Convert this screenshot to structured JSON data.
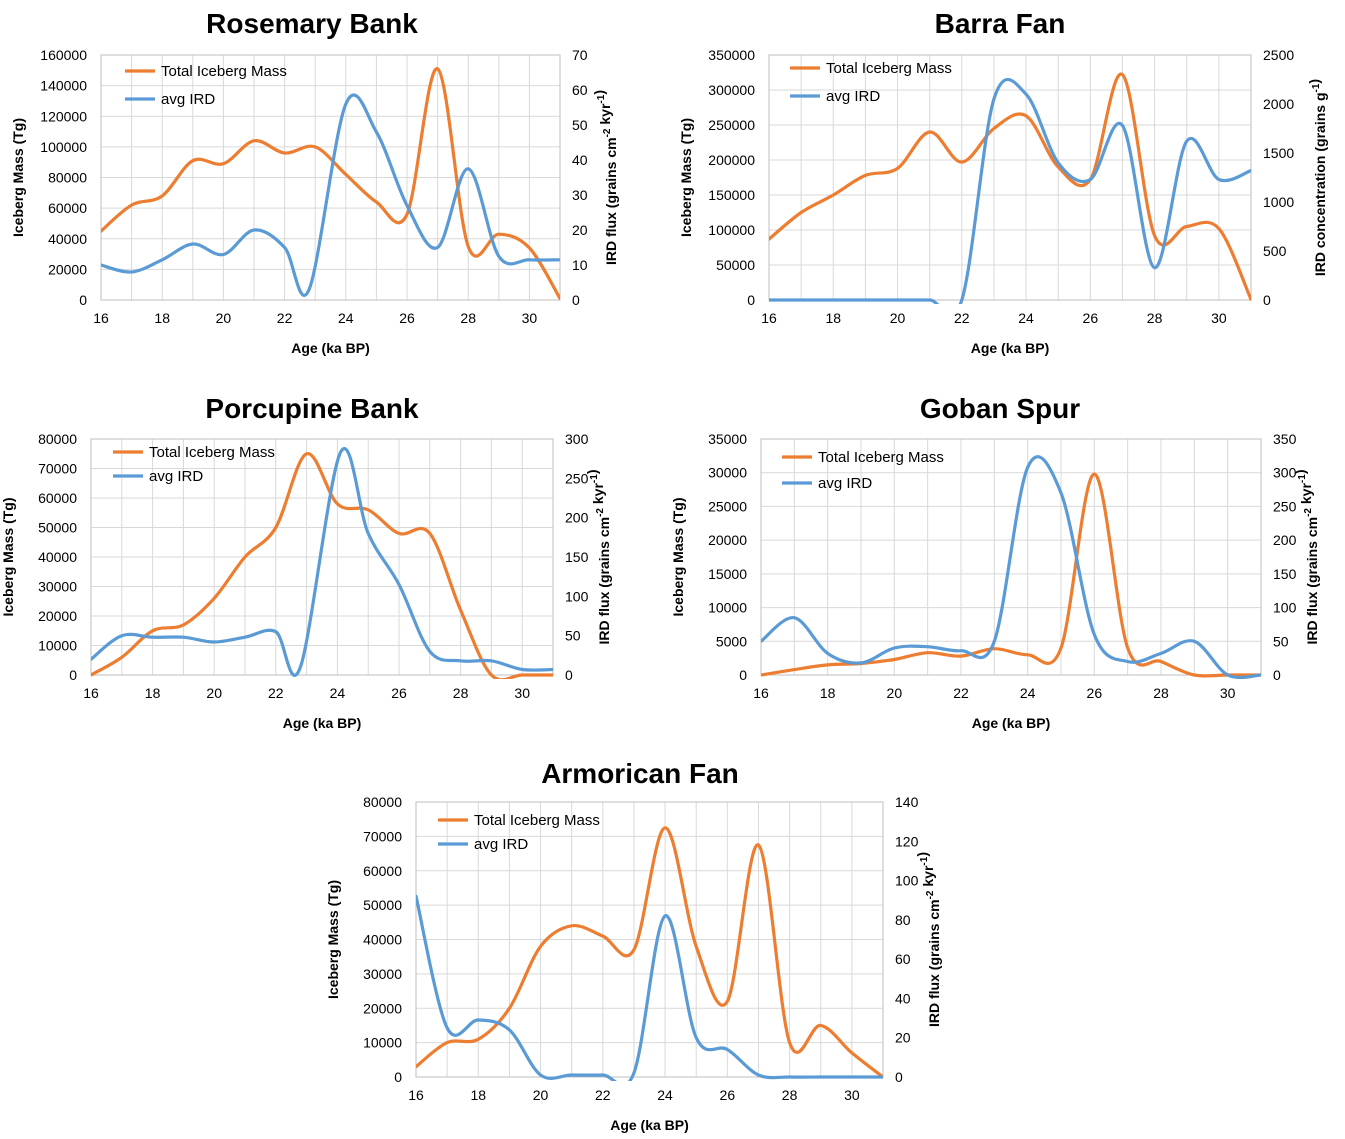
{
  "colors": {
    "mass": "#ED7D31",
    "ird": "#5B9BD5"
  },
  "chart_data": [
    {
      "type": "line",
      "title": "Rosemary Bank",
      "xlabel": "Age (ka BP)",
      "ylabel": "Iceberg Mass (Tg)",
      "y2label_main": "IRD flux (grains cm",
      "y2label_sup1": "-2",
      "y2label_mid": " kyr",
      "y2label_sup2": "-1",
      "y2label_end": ")",
      "xlim": [
        16,
        31
      ],
      "xticks": [
        "16",
        "18",
        "20",
        "22",
        "24",
        "26",
        "28",
        "30"
      ],
      "ylim": [
        0,
        160000
      ],
      "yticks": [
        "0",
        "20000",
        "40000",
        "60000",
        "80000",
        "100000",
        "120000",
        "140000",
        "160000"
      ],
      "y2lim": [
        0,
        70
      ],
      "y2ticks": [
        "0",
        "10",
        "20",
        "30",
        "40",
        "50",
        "60",
        "70"
      ],
      "legend": [
        "Total Iceberg Mass",
        "avg IRD"
      ],
      "series": [
        {
          "name": "Total Iceberg Mass",
          "axis": "left",
          "x": [
            16,
            17,
            18,
            19,
            20,
            21,
            22,
            23,
            24,
            25,
            26,
            27,
            28,
            29,
            30,
            31
          ],
          "y": [
            45000,
            62000,
            68000,
            91000,
            89000,
            104000,
            96000,
            100000,
            82000,
            64000,
            56000,
            151000,
            35000,
            43000,
            34000,
            1000
          ]
        },
        {
          "name": "avg IRD",
          "axis": "right",
          "x": [
            16,
            17,
            18,
            19,
            20,
            21,
            22,
            22.8,
            24,
            25,
            26,
            27,
            28,
            29,
            30,
            31
          ],
          "y": [
            10,
            8,
            11.5,
            16,
            13,
            20,
            15,
            3,
            56,
            48,
            27,
            15,
            37.5,
            12.5,
            11.5,
            11.5
          ]
        }
      ]
    },
    {
      "type": "line",
      "title": "Barra Fan",
      "xlabel": "Age (ka BP)",
      "ylabel": "Iceberg Mass (Tg)",
      "y2label_main": "IRD concentration (grains g",
      "y2label_sup1": "-1",
      "y2label_mid": "",
      "y2label_sup2": "",
      "y2label_end": ")",
      "xlim": [
        16,
        31
      ],
      "xticks": [
        "16",
        "18",
        "20",
        "22",
        "24",
        "26",
        "28",
        "30"
      ],
      "ylim": [
        0,
        350000
      ],
      "yticks": [
        "0",
        "50000",
        "100000",
        "150000",
        "200000",
        "250000",
        "300000",
        "350000"
      ],
      "y2lim": [
        0,
        2500
      ],
      "y2ticks": [
        "0",
        "500",
        "1000",
        "1500",
        "2000",
        "2500"
      ],
      "legend": [
        "Total Iceberg Mass",
        "avg IRD"
      ],
      "series": [
        {
          "name": "Total Iceberg Mass",
          "axis": "left",
          "x": [
            16,
            17,
            18,
            19,
            20,
            21,
            22,
            23,
            24,
            25,
            26,
            27,
            28,
            29,
            30,
            31
          ],
          "y": [
            87000,
            125000,
            150000,
            178000,
            188000,
            240000,
            197000,
            245000,
            263000,
            190000,
            172000,
            322000,
            92000,
            105000,
            102000,
            1000
          ]
        },
        {
          "name": "avg IRD",
          "axis": "right",
          "x": [
            16,
            17,
            18,
            19,
            20,
            21,
            22,
            23,
            24,
            25,
            26,
            27,
            28,
            29,
            30,
            31
          ],
          "y": [
            0,
            0,
            0,
            0,
            0,
            0,
            0,
            2050,
            2100,
            1400,
            1230,
            1780,
            330,
            1620,
            1230,
            1320
          ]
        }
      ]
    },
    {
      "type": "line",
      "title": "Porcupine Bank",
      "xlabel": "Age (ka BP)",
      "ylabel": "Iceberg Mass (Tg)",
      "y2label_main": "IRD flux (grains cm",
      "y2label_sup1": "-2",
      "y2label_mid": " kyr",
      "y2label_sup2": "-1",
      "y2label_end": ")",
      "xlim": [
        16,
        31
      ],
      "xticks": [
        "16",
        "18",
        "20",
        "22",
        "24",
        "26",
        "28",
        "30"
      ],
      "ylim": [
        0,
        80000
      ],
      "yticks": [
        "0",
        "10000",
        "20000",
        "30000",
        "40000",
        "50000",
        "60000",
        "70000",
        "80000"
      ],
      "y2lim": [
        0,
        300
      ],
      "y2ticks": [
        "0",
        "50",
        "100",
        "150",
        "200",
        "250",
        "300"
      ],
      "legend": [
        "Total Iceberg Mass",
        "avg IRD"
      ],
      "series": [
        {
          "name": "Total Iceberg Mass",
          "axis": "left",
          "x": [
            16,
            17,
            18,
            19,
            20,
            21,
            22,
            23,
            24,
            25,
            26,
            27,
            28,
            29,
            30,
            31
          ],
          "y": [
            0,
            6000,
            15000,
            17000,
            26000,
            40000,
            50000,
            75000,
            58000,
            56000,
            48000,
            48000,
            22000,
            0,
            0,
            0
          ]
        },
        {
          "name": "avg IRD",
          "axis": "right",
          "x": [
            16,
            17,
            18,
            19,
            20,
            21,
            22,
            22.8,
            24.1,
            25,
            26,
            27,
            28,
            29,
            30,
            31
          ],
          "y": [
            20,
            50,
            48,
            48,
            42,
            48,
            55,
            10,
            283,
            180,
            115,
            30,
            18,
            18,
            7,
            7
          ]
        }
      ]
    },
    {
      "type": "line",
      "title": "Goban Spur",
      "xlabel": "Age (ka BP)",
      "ylabel": "Iceberg Mass (Tg)",
      "y2label_main": "IRD flux (grains cm",
      "y2label_sup1": "-2",
      "y2label_mid": " kyr",
      "y2label_sup2": "-1",
      "y2label_end": ")",
      "xlim": [
        16,
        31
      ],
      "xticks": [
        "16",
        "18",
        "20",
        "22",
        "24",
        "26",
        "28",
        "30"
      ],
      "ylim": [
        0,
        35000
      ],
      "yticks": [
        "0",
        "5000",
        "10000",
        "15000",
        "20000",
        "25000",
        "30000",
        "35000"
      ],
      "y2lim": [
        0,
        350
      ],
      "y2ticks": [
        "0",
        "50",
        "100",
        "150",
        "200",
        "250",
        "300",
        "350"
      ],
      "legend": [
        "Total Iceberg Mass",
        "avg IRD"
      ],
      "series": [
        {
          "name": "Total Iceberg Mass",
          "axis": "left",
          "x": [
            16,
            17,
            18,
            19,
            20,
            21,
            22,
            23,
            24,
            25,
            26,
            27,
            28,
            29,
            30,
            31
          ],
          "y": [
            0,
            800,
            1500,
            1700,
            2300,
            3300,
            2800,
            3900,
            3000,
            4000,
            29800,
            4000,
            2000,
            0,
            0,
            0
          ]
        },
        {
          "name": "avg IRD",
          "axis": "right",
          "x": [
            16,
            17,
            18,
            19,
            20,
            21,
            22,
            23,
            24,
            25,
            26,
            27,
            28,
            29,
            30,
            31
          ],
          "y": [
            50,
            85,
            32,
            18,
            40,
            42,
            36,
            50,
            308,
            270,
            60,
            20,
            32,
            50,
            0,
            0
          ]
        }
      ]
    },
    {
      "type": "line",
      "title": "Armorican Fan",
      "xlabel": "Age (ka BP)",
      "ylabel": "Iceberg Mass (Tg)",
      "y2label_main": "IRD flux (grains cm",
      "y2label_sup1": "-2",
      "y2label_mid": " kyr",
      "y2label_sup2": "-1",
      "y2label_end": ")",
      "xlim": [
        16,
        31
      ],
      "xticks": [
        "16",
        "18",
        "20",
        "22",
        "24",
        "26",
        "28",
        "30"
      ],
      "ylim": [
        0,
        80000
      ],
      "yticks": [
        "0",
        "10000",
        "20000",
        "30000",
        "40000",
        "50000",
        "60000",
        "70000",
        "80000"
      ],
      "y2lim": [
        0,
        140
      ],
      "y2ticks": [
        "0",
        "20",
        "40",
        "60",
        "80",
        "100",
        "120",
        "140"
      ],
      "legend": [
        "Total Iceberg Mass",
        "avg IRD"
      ],
      "series": [
        {
          "name": "Total Iceberg Mass",
          "axis": "left",
          "x": [
            16,
            17,
            18,
            19,
            20,
            21,
            22,
            23,
            24,
            25,
            26,
            27,
            28,
            29,
            30,
            31
          ],
          "y": [
            3000,
            10000,
            11000,
            20000,
            38000,
            44000,
            41000,
            37000,
            72500,
            38000,
            22000,
            67500,
            10000,
            15000,
            7000,
            0
          ]
        },
        {
          "name": "avg IRD",
          "axis": "right",
          "x": [
            16,
            17,
            18,
            19,
            20,
            21,
            22,
            23,
            24,
            25,
            26,
            27,
            28,
            29,
            30,
            31
          ],
          "y": [
            92,
            25,
            29,
            24,
            1,
            1,
            1,
            2,
            82,
            20,
            14,
            1,
            0,
            0,
            0,
            0
          ]
        }
      ]
    }
  ]
}
